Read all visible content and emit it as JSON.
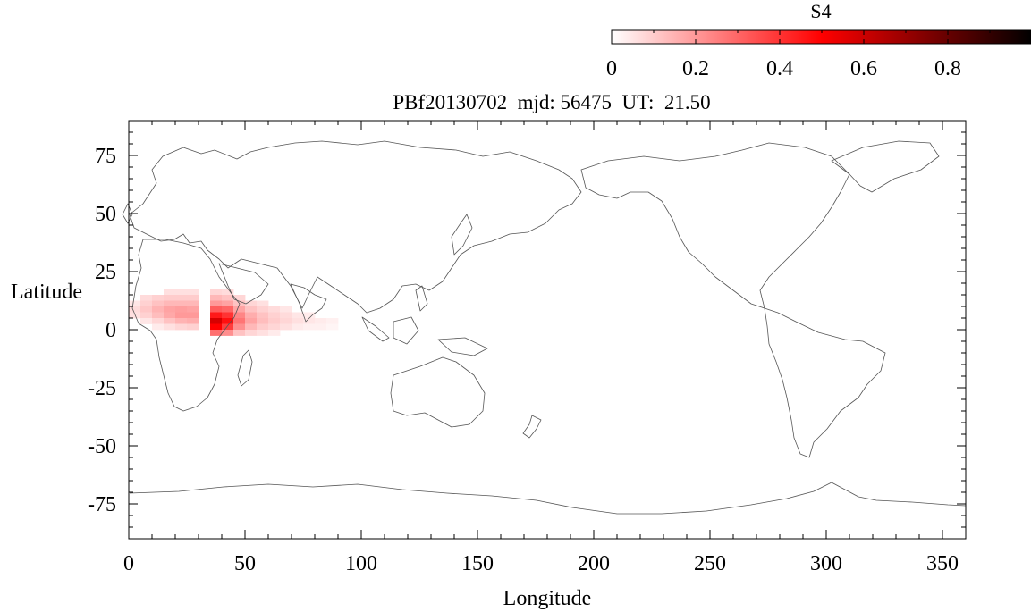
{
  "chart_data": {
    "type": "heatmap",
    "title": "PBf20130702  mjd: 56475  UT:  21.50",
    "xlabel": "Longitude",
    "ylabel": "Latitude",
    "xlim": [
      0,
      360
    ],
    "ylim": [
      -90,
      90
    ],
    "x_ticks": [
      0,
      50,
      100,
      150,
      200,
      250,
      300,
      350
    ],
    "y_ticks": [
      75,
      50,
      25,
      0,
      -25,
      -50,
      -75
    ],
    "grid": false,
    "colorbar": {
      "label": "S4",
      "range": [
        0,
        1
      ],
      "ticks": [
        0,
        0.2,
        0.4,
        0.6,
        0.8
      ],
      "colors": [
        "#ffffff",
        "#ff0000",
        "#000000"
      ],
      "placement": "top-right"
    },
    "cell_size": {
      "dlon": 5,
      "dlat": 2.5
    },
    "cells": [
      [
        0,
        10,
        0.05
      ],
      [
        0,
        7.5,
        0.07
      ],
      [
        0,
        5,
        0.06
      ],
      [
        5,
        12.5,
        0.07
      ],
      [
        5,
        10,
        0.09
      ],
      [
        5,
        7.5,
        0.11
      ],
      [
        5,
        5,
        0.09
      ],
      [
        5,
        2.5,
        0.05
      ],
      [
        10,
        12.5,
        0.09
      ],
      [
        10,
        10,
        0.12
      ],
      [
        10,
        7.5,
        0.15
      ],
      [
        10,
        5,
        0.13
      ],
      [
        10,
        2.5,
        0.08
      ],
      [
        10,
        0,
        0.04
      ],
      [
        15,
        15,
        0.06
      ],
      [
        15,
        12.5,
        0.1
      ],
      [
        15,
        10,
        0.14
      ],
      [
        15,
        7.5,
        0.18
      ],
      [
        15,
        5,
        0.17
      ],
      [
        15,
        2.5,
        0.12
      ],
      [
        15,
        0,
        0.06
      ],
      [
        20,
        15,
        0.06
      ],
      [
        20,
        12.5,
        0.1
      ],
      [
        20,
        10,
        0.14
      ],
      [
        20,
        7.5,
        0.19
      ],
      [
        20,
        5,
        0.2
      ],
      [
        20,
        2.5,
        0.15
      ],
      [
        20,
        0,
        0.08
      ],
      [
        25,
        15,
        0.06
      ],
      [
        25,
        12.5,
        0.1
      ],
      [
        25,
        10,
        0.14
      ],
      [
        25,
        7.5,
        0.18
      ],
      [
        25,
        5,
        0.2
      ],
      [
        25,
        2.5,
        0.16
      ],
      [
        25,
        0,
        0.09
      ],
      [
        35,
        15,
        0.08
      ],
      [
        35,
        12.5,
        0.14
      ],
      [
        35,
        10,
        0.2
      ],
      [
        35,
        7.5,
        0.32
      ],
      [
        35,
        5,
        0.45
      ],
      [
        35,
        2.5,
        0.58
      ],
      [
        35,
        0,
        0.5
      ],
      [
        35,
        -2.5,
        0.28
      ],
      [
        40,
        15,
        0.07
      ],
      [
        40,
        12.5,
        0.12
      ],
      [
        40,
        10,
        0.18
      ],
      [
        40,
        7.5,
        0.3
      ],
      [
        40,
        5,
        0.4
      ],
      [
        40,
        2.5,
        0.47
      ],
      [
        40,
        0,
        0.38
      ],
      [
        40,
        -2.5,
        0.22
      ],
      [
        45,
        12.5,
        0.08
      ],
      [
        45,
        10,
        0.12
      ],
      [
        45,
        7.5,
        0.18
      ],
      [
        45,
        5,
        0.24
      ],
      [
        45,
        2.5,
        0.27
      ],
      [
        45,
        0,
        0.22
      ],
      [
        45,
        -2.5,
        0.12
      ],
      [
        50,
        10,
        0.08
      ],
      [
        50,
        7.5,
        0.12
      ],
      [
        50,
        5,
        0.16
      ],
      [
        50,
        2.5,
        0.18
      ],
      [
        50,
        0,
        0.14
      ],
      [
        50,
        -2.5,
        0.08
      ],
      [
        55,
        10,
        0.06
      ],
      [
        55,
        7.5,
        0.09
      ],
      [
        55,
        5,
        0.12
      ],
      [
        55,
        2.5,
        0.13
      ],
      [
        55,
        0,
        0.1
      ],
      [
        55,
        -2.5,
        0.06
      ],
      [
        60,
        7.5,
        0.07
      ],
      [
        60,
        5,
        0.09
      ],
      [
        60,
        2.5,
        0.1
      ],
      [
        60,
        0,
        0.08
      ],
      [
        60,
        -2.5,
        0.04
      ],
      [
        65,
        7.5,
        0.05
      ],
      [
        65,
        5,
        0.07
      ],
      [
        65,
        2.5,
        0.08
      ],
      [
        65,
        0,
        0.06
      ],
      [
        70,
        5,
        0.05
      ],
      [
        70,
        2.5,
        0.06
      ],
      [
        70,
        0,
        0.04
      ],
      [
        75,
        5,
        0.04
      ],
      [
        75,
        2.5,
        0.05
      ],
      [
        75,
        0,
        0.03
      ],
      [
        80,
        2.5,
        0.04
      ],
      [
        80,
        0,
        0.03
      ],
      [
        85,
        2.5,
        0.03
      ],
      [
        85,
        0,
        0.02
      ]
    ]
  }
}
